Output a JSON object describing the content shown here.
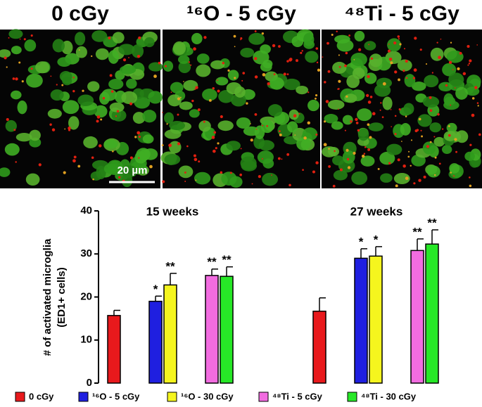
{
  "panels": [
    {
      "title": "0 cGy",
      "scale_bar": "20 µm"
    },
    {
      "title": "¹⁶O - 5 cGy"
    },
    {
      "title": "⁴⁸Ti - 5 cGy"
    }
  ],
  "chart_data": {
    "type": "bar",
    "y_label_lines": [
      "# of activated microglia",
      "(ED1+ cells)"
    ],
    "categories": [
      "15 weeks",
      "27 weeks"
    ],
    "ylim": [
      0,
      40
    ],
    "yticks": [
      0,
      10,
      20,
      30,
      40
    ],
    "series": [
      {
        "name": "0 cGy",
        "color": "#e8191c",
        "values": [
          15.7,
          16.7
        ],
        "errors": [
          1.2,
          3.1
        ],
        "significance": [
          null,
          null
        ]
      },
      {
        "name": "¹⁶O - 5 cGy",
        "color": "#1f1fe0",
        "values": [
          19,
          29
        ],
        "errors": [
          1.2,
          2.2
        ],
        "significance": [
          "*",
          "*"
        ]
      },
      {
        "name": "¹⁶O - 30 cGy",
        "color": "#f5f51e",
        "values": [
          22.8,
          29.5
        ],
        "errors": [
          2.7,
          2.2
        ],
        "significance": [
          "**",
          "*"
        ]
      },
      {
        "name": "⁴⁸Ti - 5 cGy",
        "color": "#f26ce0",
        "values": [
          25,
          30.8
        ],
        "errors": [
          1.5,
          2.7
        ],
        "significance": [
          "**",
          "**"
        ]
      },
      {
        "name": "⁴⁸Ti - 30 cGy",
        "color": "#27e827",
        "values": [
          24.8,
          32.3
        ],
        "errors": [
          2.2,
          3.3
        ],
        "significance": [
          "**",
          "**"
        ]
      }
    ]
  }
}
